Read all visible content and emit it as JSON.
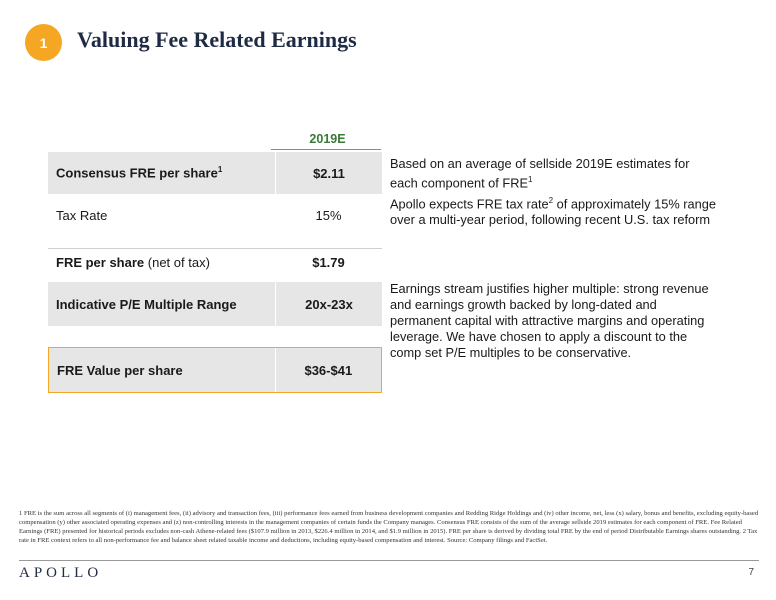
{
  "header": {
    "badge": "1",
    "title": "Valuing Fee Related Earnings"
  },
  "table": {
    "column_header": "2019E",
    "rows": [
      {
        "label": "Consensus FRE per share",
        "label_sup": "1",
        "label_suffix": "",
        "value": "$2.11"
      },
      {
        "label": "Tax Rate",
        "label_sup": "",
        "label_suffix": "",
        "value": "15%"
      },
      {
        "label": "FRE per share",
        "label_sup": "",
        "label_suffix": " (net of tax)",
        "value": "$1.79"
      },
      {
        "label": "Indicative P/E Multiple Range",
        "label_sup": "",
        "label_suffix": "",
        "value": "20x-23x"
      },
      {
        "label": "FRE Value per share",
        "label_sup": "",
        "label_suffix": "",
        "value": "$36-$41"
      }
    ]
  },
  "notes": {
    "n1_text": "Based on an average of sellside 2019E estimates for each component of FRE",
    "n1_sup": "1",
    "n2_pre": "Apollo expects FRE tax rate",
    "n2_sup": "2",
    "n2_post": " of approximately 15% range over a multi-year period, following recent U.S. tax reform",
    "n3_text": "Earnings stream justifies higher multiple: strong revenue and earnings growth backed by long-dated and permanent capital with attractive margins and operating leverage. We have chosen to apply a discount to the comp set P/E multiples to be conservative."
  },
  "footnote": "1 FRE is the sum across all segments of (i) management fees, (ii) advisory and transaction fees, (iii) performance fees earned from business development companies and Redding Ridge Holdings and (iv) other income, net, less (x) salary, bonus and benefits, excluding equity-based compensation (y) other associated operating expenses and (z) non-controlling interests in the management companies of certain funds the Company manages. Consensus FRE consists of the sum of the average sellside 2019 estimates for each component of FRE. Fee Related Earnings (FRE) presented for historical periods excludes non-cash Athene-related fees ($107.9 million in 2013, $226.4 million in 2014, and $1.9 million in 2015). FRE per share is derived by dividing total FRE by the end of period Distributable Earnings shares outstanding. 2 Tax rate in FRE context refers to all non-performance fee and balance sheet related taxable income and deductions, including equity-based compensation and interest. Source: Company filings and FactSet.",
  "footer": {
    "logo": "APOLLO",
    "page": "7"
  },
  "colors": {
    "accent": "#f5a623",
    "title": "#1f2a44",
    "header_green": "#3a7a37",
    "row_shade": "#e6e6e6"
  }
}
